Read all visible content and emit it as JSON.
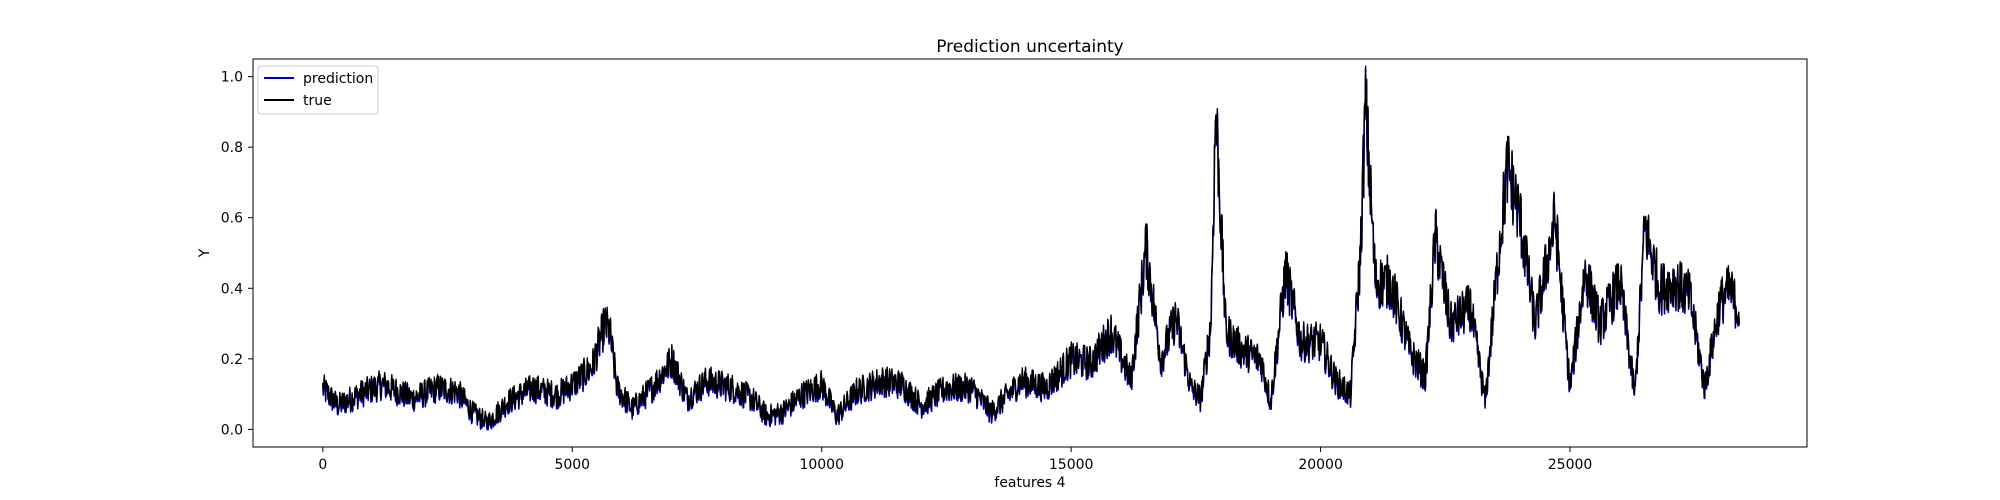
{
  "chart_data": {
    "type": "line",
    "title": "Prediction uncertainty",
    "xlabel": "features 4",
    "ylabel": "Y",
    "xlim": [
      -1400,
      29750
    ],
    "ylim": [
      -0.05,
      1.05
    ],
    "xticks": [
      0,
      5000,
      10000,
      15000,
      20000,
      25000
    ],
    "xtick_labels": [
      "0",
      "5000",
      "10000",
      "15000",
      "20000",
      "25000"
    ],
    "yticks": [
      0.0,
      0.2,
      0.4,
      0.6,
      0.8,
      1.0
    ],
    "ytick_labels": [
      "0.0",
      "0.2",
      "0.4",
      "0.6",
      "0.8",
      "1.0"
    ],
    "grid": false,
    "legend": {
      "position": "top-left"
    },
    "series": [
      {
        "name": "prediction",
        "color": "#0000cc",
        "x_start": 0,
        "x_end": 28400
      },
      {
        "name": "true",
        "color": "#000000",
        "x_start": 0,
        "x_end": 28400
      }
    ],
    "envelope_x": [
      0,
      300,
      700,
      1200,
      1800,
      2300,
      2700,
      3000,
      3300,
      3700,
      4200,
      4700,
      5100,
      5400,
      5650,
      5750,
      5900,
      6200,
      6600,
      7000,
      7300,
      7700,
      8200,
      8600,
      8900,
      9200,
      9600,
      10000,
      10300,
      10700,
      11200,
      11600,
      12000,
      12500,
      13000,
      13400,
      14000,
      14500,
      15000,
      15400,
      15800,
      16200,
      16500,
      16800,
      17100,
      17400,
      17600,
      17800,
      17900,
      18100,
      18400,
      18800,
      19000,
      19300,
      19600,
      20000,
      20300,
      20600,
      20800,
      20900,
      21100,
      21400,
      21800,
      22100,
      22300,
      22600,
      23000,
      23300,
      23600,
      23750,
      24000,
      24300,
      24700,
      25000,
      25300,
      25600,
      26000,
      26300,
      26500,
      26800,
      27100,
      27400,
      27700,
      28000,
      28200,
      28400
    ],
    "envelope_y": [
      0.12,
      0.07,
      0.1,
      0.13,
      0.09,
      0.12,
      0.11,
      0.05,
      0.02,
      0.08,
      0.12,
      0.1,
      0.14,
      0.18,
      0.3,
      0.28,
      0.12,
      0.06,
      0.12,
      0.2,
      0.09,
      0.14,
      0.12,
      0.09,
      0.04,
      0.05,
      0.1,
      0.13,
      0.04,
      0.11,
      0.14,
      0.13,
      0.07,
      0.12,
      0.12,
      0.05,
      0.14,
      0.12,
      0.2,
      0.19,
      0.28,
      0.14,
      0.52,
      0.2,
      0.32,
      0.12,
      0.09,
      0.3,
      0.92,
      0.28,
      0.23,
      0.2,
      0.08,
      0.45,
      0.25,
      0.25,
      0.14,
      0.1,
      0.5,
      0.93,
      0.42,
      0.42,
      0.22,
      0.15,
      0.55,
      0.3,
      0.35,
      0.08,
      0.55,
      0.75,
      0.6,
      0.3,
      0.6,
      0.12,
      0.45,
      0.3,
      0.42,
      0.1,
      0.58,
      0.4,
      0.42,
      0.38,
      0.12,
      0.36,
      0.4,
      0.33
    ]
  }
}
